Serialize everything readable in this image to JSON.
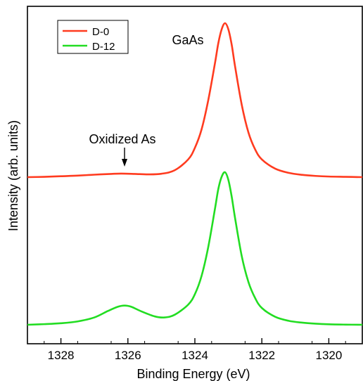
{
  "chart_data": {
    "type": "line",
    "title": "",
    "xlabel": "Binding Energy (eV)",
    "ylabel": "Intensity (arb. units)",
    "xlim": [
      1329,
      1319
    ],
    "x_reversed": true,
    "x_ticks": [
      1328,
      1326,
      1324,
      1322,
      1320
    ],
    "x_tick_labels": [
      "1328",
      "1326",
      "1324",
      "1322",
      "1320"
    ],
    "y_ticks_labeled": false,
    "grid": false,
    "legend_position": "top-left",
    "series": [
      {
        "name": "D-0",
        "color": "#ff3b1f",
        "x": [
          1329,
          1328.5,
          1328,
          1327.5,
          1327,
          1326.5,
          1326.2,
          1325.8,
          1325.4,
          1325,
          1324.6,
          1324.2,
          1324,
          1323.8,
          1323.6,
          1323.4,
          1323.3,
          1323.2,
          1323.1,
          1323.0,
          1322.9,
          1322.8,
          1322.6,
          1322.4,
          1322.2,
          1322,
          1321.6,
          1321.2,
          1320.8,
          1320.4,
          1320,
          1319.5,
          1319
        ],
        "y": [
          0.0,
          0.002,
          0.006,
          0.01,
          0.016,
          0.021,
          0.023,
          0.021,
          0.018,
          0.022,
          0.045,
          0.115,
          0.19,
          0.31,
          0.5,
          0.74,
          0.87,
          0.96,
          1.0,
          0.96,
          0.86,
          0.72,
          0.47,
          0.29,
          0.18,
          0.115,
          0.055,
          0.028,
          0.015,
          0.008,
          0.004,
          0.002,
          0.0
        ]
      },
      {
        "name": "D-12",
        "color": "#22dd22",
        "x": [
          1329,
          1328.5,
          1328,
          1327.5,
          1327,
          1326.6,
          1326.3,
          1326.1,
          1325.9,
          1325.6,
          1325.2,
          1324.9,
          1324.6,
          1324.2,
          1324,
          1323.8,
          1323.6,
          1323.4,
          1323.3,
          1323.2,
          1323.1,
          1323.0,
          1322.9,
          1322.8,
          1322.6,
          1322.4,
          1322.2,
          1322,
          1321.6,
          1321.2,
          1320.8,
          1320.4,
          1320,
          1319.5,
          1319
        ],
        "y": [
          0.0,
          0.004,
          0.01,
          0.022,
          0.048,
          0.09,
          0.118,
          0.126,
          0.118,
          0.088,
          0.055,
          0.048,
          0.066,
          0.132,
          0.2,
          0.32,
          0.51,
          0.76,
          0.89,
          0.97,
          1.0,
          0.95,
          0.84,
          0.7,
          0.45,
          0.28,
          0.175,
          0.11,
          0.052,
          0.026,
          0.014,
          0.007,
          0.003,
          0.001,
          0.0
        ]
      }
    ],
    "annotations": [
      {
        "text": "GaAs",
        "near_x": 1323.7
      },
      {
        "text": "Oxidized As",
        "arrow_to_x": 1326.1
      }
    ]
  }
}
